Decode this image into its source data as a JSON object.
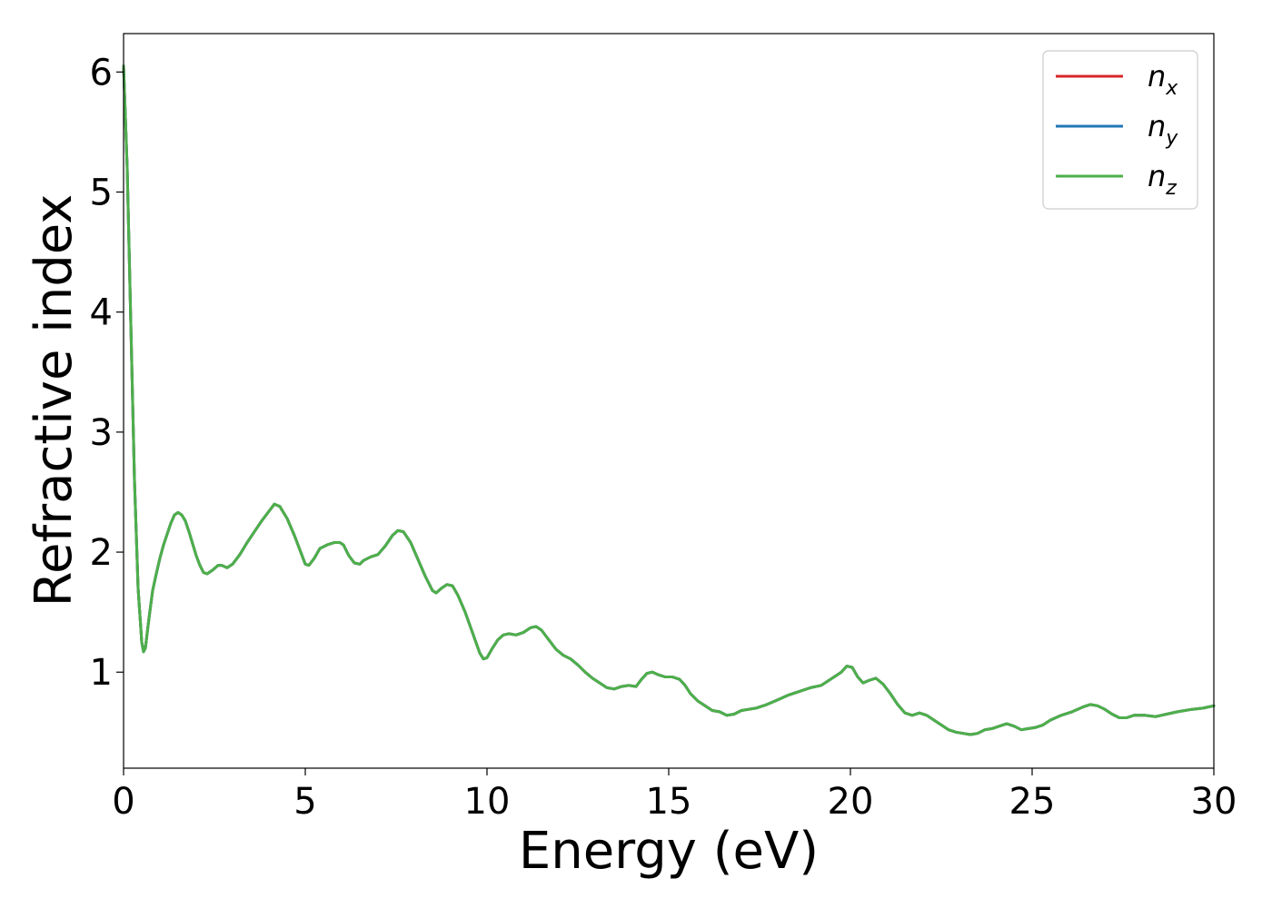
{
  "chart_data": {
    "type": "line",
    "xlabel": "Energy (eV)",
    "ylabel": "Refractive index",
    "xlim": [
      0,
      30
    ],
    "ylim": [
      0.2,
      6.32
    ],
    "xticks": [
      0,
      5,
      10,
      15,
      20,
      25,
      30
    ],
    "yticks": [
      1,
      2,
      3,
      4,
      5,
      6
    ],
    "grid": false,
    "legend_position": "top-right",
    "series": [
      {
        "name": "n",
        "subscript": "x",
        "color": "#d62728",
        "points": []
      },
      {
        "name": "n",
        "subscript": "y",
        "color": "#1f77b4",
        "points": []
      },
      {
        "name": "n",
        "subscript": "z",
        "color": "#4daf4a",
        "points": [
          [
            0.0,
            6.05
          ],
          [
            0.1,
            5.2
          ],
          [
            0.2,
            3.9
          ],
          [
            0.3,
            2.6
          ],
          [
            0.4,
            1.7
          ],
          [
            0.5,
            1.25
          ],
          [
            0.55,
            1.17
          ],
          [
            0.6,
            1.2
          ],
          [
            0.7,
            1.45
          ],
          [
            0.8,
            1.68
          ],
          [
            0.9,
            1.82
          ],
          [
            1.0,
            1.95
          ],
          [
            1.1,
            2.06
          ],
          [
            1.2,
            2.15
          ],
          [
            1.3,
            2.24
          ],
          [
            1.4,
            2.31
          ],
          [
            1.5,
            2.33
          ],
          [
            1.6,
            2.31
          ],
          [
            1.7,
            2.26
          ],
          [
            1.8,
            2.17
          ],
          [
            1.9,
            2.07
          ],
          [
            2.0,
            1.97
          ],
          [
            2.1,
            1.89
          ],
          [
            2.2,
            1.83
          ],
          [
            2.3,
            1.82
          ],
          [
            2.45,
            1.85
          ],
          [
            2.6,
            1.89
          ],
          [
            2.7,
            1.89
          ],
          [
            2.85,
            1.87
          ],
          [
            3.0,
            1.9
          ],
          [
            3.2,
            1.98
          ],
          [
            3.4,
            2.08
          ],
          [
            3.6,
            2.17
          ],
          [
            3.8,
            2.26
          ],
          [
            4.0,
            2.34
          ],
          [
            4.15,
            2.4
          ],
          [
            4.3,
            2.38
          ],
          [
            4.5,
            2.28
          ],
          [
            4.7,
            2.14
          ],
          [
            4.9,
            1.98
          ],
          [
            5.0,
            1.9
          ],
          [
            5.1,
            1.89
          ],
          [
            5.25,
            1.95
          ],
          [
            5.4,
            2.03
          ],
          [
            5.6,
            2.06
          ],
          [
            5.8,
            2.08
          ],
          [
            5.95,
            2.08
          ],
          [
            6.05,
            2.06
          ],
          [
            6.2,
            1.97
          ],
          [
            6.35,
            1.91
          ],
          [
            6.5,
            1.9
          ],
          [
            6.6,
            1.93
          ],
          [
            6.8,
            1.96
          ],
          [
            7.0,
            1.98
          ],
          [
            7.2,
            2.05
          ],
          [
            7.4,
            2.14
          ],
          [
            7.55,
            2.18
          ],
          [
            7.7,
            2.17
          ],
          [
            7.9,
            2.08
          ],
          [
            8.1,
            1.94
          ],
          [
            8.3,
            1.8
          ],
          [
            8.5,
            1.68
          ],
          [
            8.6,
            1.66
          ],
          [
            8.75,
            1.7
          ],
          [
            8.9,
            1.73
          ],
          [
            9.05,
            1.72
          ],
          [
            9.2,
            1.64
          ],
          [
            9.4,
            1.5
          ],
          [
            9.6,
            1.33
          ],
          [
            9.8,
            1.16
          ],
          [
            9.9,
            1.11
          ],
          [
            10.0,
            1.12
          ],
          [
            10.15,
            1.2
          ],
          [
            10.3,
            1.27
          ],
          [
            10.45,
            1.31
          ],
          [
            10.6,
            1.32
          ],
          [
            10.8,
            1.31
          ],
          [
            11.0,
            1.33
          ],
          [
            11.2,
            1.37
          ],
          [
            11.35,
            1.38
          ],
          [
            11.5,
            1.35
          ],
          [
            11.7,
            1.27
          ],
          [
            11.9,
            1.19
          ],
          [
            12.1,
            1.14
          ],
          [
            12.3,
            1.11
          ],
          [
            12.5,
            1.06
          ],
          [
            12.7,
            1.0
          ],
          [
            12.9,
            0.95
          ],
          [
            13.1,
            0.91
          ],
          [
            13.3,
            0.87
          ],
          [
            13.5,
            0.86
          ],
          [
            13.7,
            0.88
          ],
          [
            13.9,
            0.89
          ],
          [
            14.1,
            0.88
          ],
          [
            14.25,
            0.94
          ],
          [
            14.4,
            0.99
          ],
          [
            14.55,
            1.0
          ],
          [
            14.7,
            0.98
          ],
          [
            14.9,
            0.96
          ],
          [
            15.1,
            0.96
          ],
          [
            15.3,
            0.94
          ],
          [
            15.45,
            0.89
          ],
          [
            15.6,
            0.82
          ],
          [
            15.8,
            0.76
          ],
          [
            16.0,
            0.72
          ],
          [
            16.2,
            0.68
          ],
          [
            16.4,
            0.67
          ],
          [
            16.6,
            0.64
          ],
          [
            16.8,
            0.65
          ],
          [
            17.0,
            0.68
          ],
          [
            17.2,
            0.69
          ],
          [
            17.4,
            0.7
          ],
          [
            17.7,
            0.73
          ],
          [
            18.0,
            0.77
          ],
          [
            18.3,
            0.81
          ],
          [
            18.6,
            0.84
          ],
          [
            18.9,
            0.87
          ],
          [
            19.2,
            0.89
          ],
          [
            19.5,
            0.95
          ],
          [
            19.75,
            1.0
          ],
          [
            19.9,
            1.05
          ],
          [
            20.05,
            1.04
          ],
          [
            20.2,
            0.96
          ],
          [
            20.35,
            0.91
          ],
          [
            20.5,
            0.93
          ],
          [
            20.7,
            0.95
          ],
          [
            20.9,
            0.9
          ],
          [
            21.1,
            0.82
          ],
          [
            21.3,
            0.73
          ],
          [
            21.5,
            0.66
          ],
          [
            21.7,
            0.64
          ],
          [
            21.9,
            0.66
          ],
          [
            22.1,
            0.64
          ],
          [
            22.3,
            0.6
          ],
          [
            22.5,
            0.56
          ],
          [
            22.7,
            0.52
          ],
          [
            22.9,
            0.5
          ],
          [
            23.1,
            0.49
          ],
          [
            23.3,
            0.48
          ],
          [
            23.5,
            0.49
          ],
          [
            23.7,
            0.52
          ],
          [
            23.9,
            0.53
          ],
          [
            24.1,
            0.55
          ],
          [
            24.3,
            0.57
          ],
          [
            24.5,
            0.55
          ],
          [
            24.7,
            0.52
          ],
          [
            24.9,
            0.53
          ],
          [
            25.1,
            0.54
          ],
          [
            25.3,
            0.56
          ],
          [
            25.5,
            0.6
          ],
          [
            25.8,
            0.64
          ],
          [
            26.1,
            0.67
          ],
          [
            26.4,
            0.71
          ],
          [
            26.6,
            0.73
          ],
          [
            26.8,
            0.72
          ],
          [
            27.0,
            0.69
          ],
          [
            27.2,
            0.65
          ],
          [
            27.4,
            0.62
          ],
          [
            27.6,
            0.62
          ],
          [
            27.8,
            0.64
          ],
          [
            28.1,
            0.64
          ],
          [
            28.4,
            0.63
          ],
          [
            28.7,
            0.65
          ],
          [
            29.0,
            0.67
          ],
          [
            29.4,
            0.69
          ],
          [
            29.7,
            0.7
          ],
          [
            30.0,
            0.72
          ]
        ]
      }
    ]
  }
}
